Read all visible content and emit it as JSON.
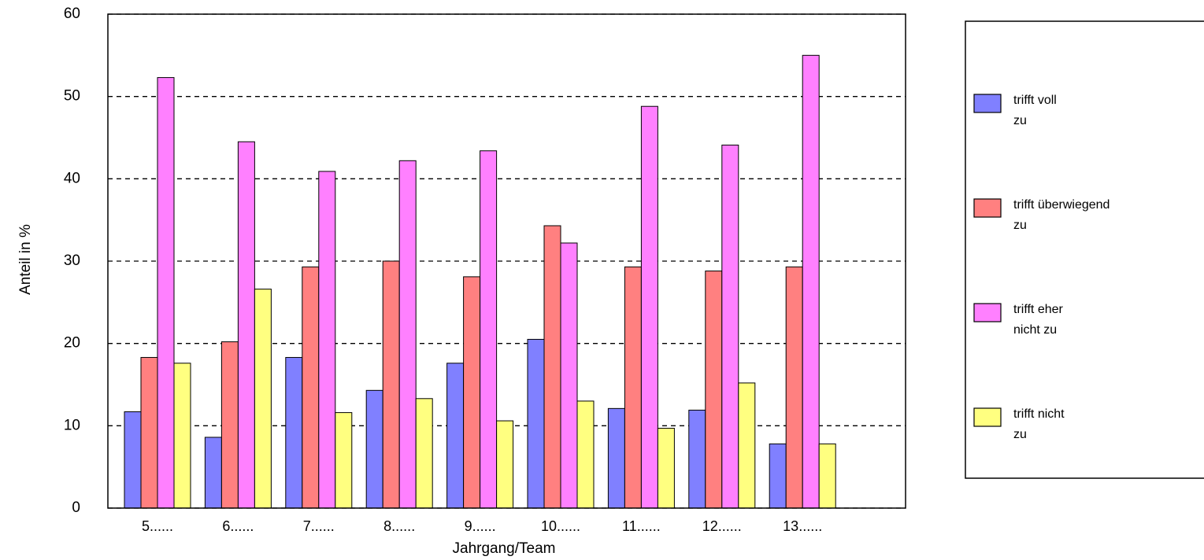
{
  "chart_data": {
    "type": "bar",
    "categories": [
      "5......",
      "6......",
      "7......",
      "8......",
      "9......",
      "10......",
      "11......",
      "12......",
      "13......"
    ],
    "series": [
      {
        "name": "trifft voll zu",
        "color": "#8080ff",
        "values": [
          11.7,
          8.6,
          18.3,
          14.3,
          17.6,
          20.5,
          12.1,
          11.9,
          7.8
        ]
      },
      {
        "name": "trifft überwiegend zu",
        "color": "#ff8080",
        "values": [
          18.3,
          20.2,
          29.3,
          30.0,
          28.1,
          34.3,
          29.3,
          28.8,
          29.3
        ]
      },
      {
        "name": "trifft eher nicht zu",
        "color": "#ff80ff",
        "values": [
          52.3,
          44.5,
          40.9,
          42.2,
          43.4,
          32.2,
          48.8,
          44.1,
          55.0
        ]
      },
      {
        "name": "trifft nicht zu",
        "color": "#ffff80",
        "values": [
          17.6,
          26.6,
          11.6,
          13.3,
          10.6,
          13.0,
          9.7,
          15.2,
          7.8
        ]
      }
    ],
    "x_label": "Jahrgang/Team",
    "y_label": "Anteil in %",
    "ylim": [
      0,
      60
    ],
    "yticks": [
      0,
      10,
      20,
      30,
      40,
      50,
      60
    ],
    "grid": true,
    "legend": "right"
  }
}
